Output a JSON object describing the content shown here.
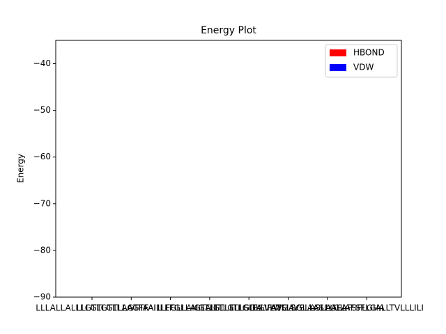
{
  "chart_data": {
    "type": "bar",
    "title": "Energy Plot",
    "y_label": "Energy",
    "categories": [
      "LLLALLALLLGTLGTLLAGTFA",
      "LLLGTLGTLLAGTFAILLFGLL",
      "LLAGTFAILLFGLLAIGTLLTL",
      "ILLFGLLAIGTLLTLGLLGIFA",
      "LLAIGTLLTLGLLGIFATLLSG",
      "TLLSGLLVLWGAVSLLGLAASL",
      "AVSLLGLAASLLGLAFSFLGIA",
      "ASLLGLAFSFLGIALLTVLLLILI"
    ],
    "series": [
      {
        "name": "HBOND",
        "color": "#ff0000",
        "values": [
          0,
          0,
          0,
          0,
          0,
          0,
          0,
          0
        ]
      },
      {
        "name": "VDW",
        "color": "#0000ff",
        "values": [
          0,
          0,
          0,
          0,
          0,
          0,
          0,
          0
        ]
      }
    ],
    "ylim": [
      -90,
      -35
    ],
    "yticks": [
      {
        "value": -90,
        "label": "−90"
      },
      {
        "value": -80,
        "label": "−80"
      },
      {
        "value": -70,
        "label": "−70"
      },
      {
        "value": -60,
        "label": "−60"
      },
      {
        "value": -50,
        "label": "−50"
      },
      {
        "value": -40,
        "label": "−40"
      }
    ],
    "legend": "upper right"
  }
}
